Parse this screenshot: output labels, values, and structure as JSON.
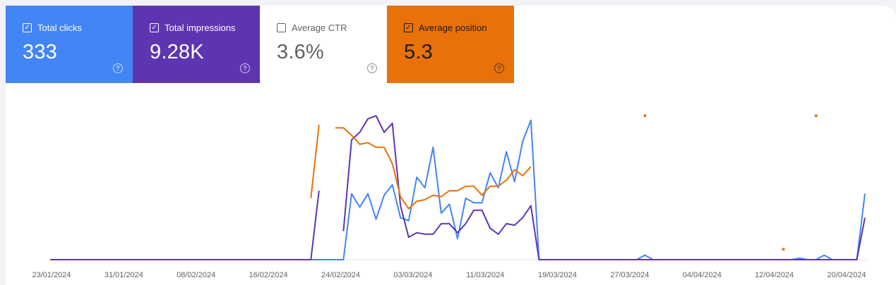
{
  "metrics": [
    {
      "label": "Total clicks",
      "value": "333",
      "checked": true,
      "color": "#4285f4"
    },
    {
      "label": "Total impressions",
      "value": "9.28K",
      "checked": true,
      "color": "#5e35b1"
    },
    {
      "label": "Average CTR",
      "value": "3.6%",
      "checked": false,
      "color": "#ffffff"
    },
    {
      "label": "Average position",
      "value": "5.3",
      "checked": true,
      "color": "#e8710a"
    }
  ],
  "help_icon": "question-circle-icon",
  "checkbox_icon": "check-icon",
  "chart_data": {
    "type": "line",
    "x_tick_labels": [
      "23/01/2024",
      "31/01/2024",
      "08/02/2024",
      "16/02/2024",
      "24/02/2024",
      "03/03/2024",
      "11/03/2024",
      "19/03/2024",
      "27/03/2024",
      "04/04/2024",
      "12/04/2024",
      "20/04/2024"
    ],
    "y_axis_shown": false,
    "grid": false,
    "series": [
      {
        "name": "Total clicks",
        "color": "#4285f4",
        "values": [
          0,
          0,
          0,
          0,
          0,
          0,
          0,
          0,
          0,
          0,
          0,
          0,
          0,
          0,
          0,
          0,
          0,
          0,
          0,
          0,
          0,
          0,
          0,
          0,
          0,
          0,
          0,
          0,
          0,
          0,
          0,
          0,
          0,
          0,
          0,
          0,
          0,
          0.44,
          0.35,
          0.44,
          0.27,
          0.43,
          0.5,
          0.28,
          0.26,
          0.55,
          0.48,
          0.75,
          0.31,
          0.37,
          0.14,
          0.41,
          0.38,
          0.38,
          0.58,
          0.48,
          0.72,
          0.52,
          0.79,
          0.93,
          0,
          0,
          0,
          0,
          0,
          0,
          0,
          0,
          0,
          0,
          0,
          0,
          0,
          0.03,
          0,
          0,
          0,
          0,
          0,
          0,
          0,
          0,
          0,
          0,
          0,
          0,
          0,
          0,
          0,
          0,
          0,
          0,
          0.01,
          0,
          0,
          0.03,
          0,
          0,
          0,
          0,
          0.44
        ]
      },
      {
        "name": "Total impressions",
        "color": "#5e35b1",
        "values": [
          0,
          0,
          0,
          0,
          0,
          0,
          0,
          0,
          0,
          0,
          0,
          0,
          0,
          0,
          0,
          0,
          0,
          0,
          0,
          0,
          0,
          0,
          0,
          0,
          0,
          0,
          0,
          0,
          0,
          0,
          0,
          0,
          0,
          0.46,
          null,
          null,
          0.19,
          0.8,
          0.85,
          0.94,
          0.96,
          0.85,
          0.91,
          0.36,
          0.15,
          0.18,
          0.17,
          0.17,
          0.24,
          0.24,
          0.18,
          0.24,
          0.33,
          0.33,
          0.21,
          0.17,
          0.24,
          0.23,
          0.28,
          0.36,
          0,
          0,
          0,
          0,
          0,
          0,
          0,
          0,
          0,
          0,
          0,
          0,
          0,
          0,
          0,
          0,
          0,
          0,
          0,
          0,
          0,
          0,
          0,
          0,
          0,
          0,
          0,
          0,
          0,
          0,
          0,
          0,
          0,
          0,
          0,
          0,
          0,
          0,
          0,
          0,
          0.28
        ]
      },
      {
        "name": "Average position",
        "color": "#e8710a",
        "values": [
          null,
          null,
          null,
          null,
          null,
          null,
          null,
          null,
          null,
          null,
          null,
          null,
          null,
          null,
          null,
          null,
          null,
          null,
          null,
          null,
          null,
          null,
          null,
          null,
          null,
          null,
          null,
          null,
          null,
          null,
          null,
          null,
          0.41,
          0.9,
          null,
          0.88,
          0.88,
          0.83,
          0.77,
          0.78,
          0.75,
          0.75,
          0.64,
          0.42,
          0.34,
          0.39,
          0.4,
          0.43,
          0.42,
          0.46,
          0.46,
          0.49,
          0.49,
          0.43,
          0.49,
          0.49,
          0.53,
          0.6,
          0.56,
          0.62,
          null,
          null,
          null,
          null,
          null,
          null,
          null,
          null,
          null,
          null,
          null,
          null,
          null,
          0.96,
          null,
          null,
          null,
          null,
          null,
          null,
          null,
          null,
          null,
          null,
          null,
          null,
          null,
          null,
          null,
          null,
          0.07,
          null,
          null,
          null,
          0.96,
          null,
          null,
          null,
          null,
          null,
          null
        ]
      }
    ]
  }
}
